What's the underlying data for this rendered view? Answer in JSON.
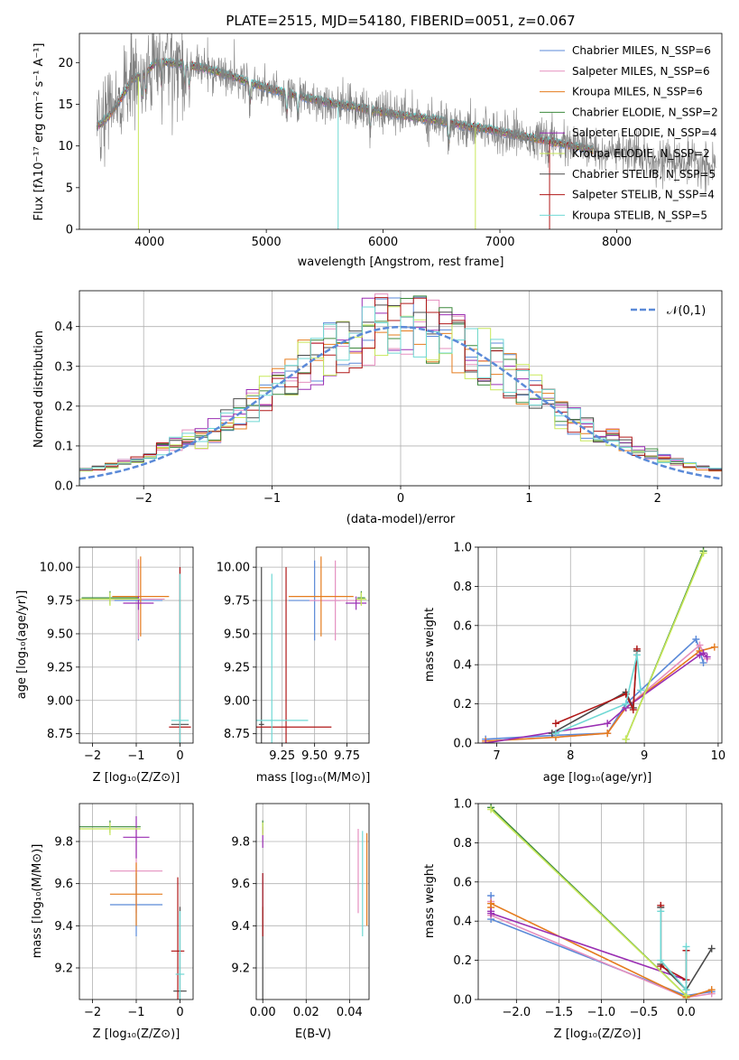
{
  "colors": {
    "chabrier_miles": "#5b8ad8",
    "salpeter_miles": "#e58fbf",
    "kroupa_miles": "#e57c1e",
    "chabrier_elodie": "#3d8a3d",
    "salpeter_elodie": "#9a2fb3",
    "kroupa_elodie": "#c8e85a",
    "chabrier_stelib": "#4a4a4a",
    "salpeter_stelib": "#b01818",
    "kroupa_stelib": "#6fd8d4",
    "normal_curve": "#5b8ad8"
  },
  "chart_data": [
    {
      "id": "spectrum",
      "type": "line",
      "title": "PLATE=2515, MJD=54180, FIBERID=0051, z=0.067",
      "xlabel": "wavelength [Angstrom, rest frame]",
      "ylabel": "Flux [fλ10⁻¹⁷ erg cm⁻² s⁻¹ A⁻¹]",
      "xlim": [
        3400,
        8900
      ],
      "ylim": [
        0,
        23.5
      ],
      "xticks": [
        "4000",
        "5000",
        "6000",
        "7000",
        "8000"
      ],
      "yticks": [
        "0",
        "5",
        "10",
        "15",
        "20"
      ],
      "legend_position": "top-right",
      "legend": [
        "Chabrier MILES, N_SSP=6",
        "Salpeter MILES, N_SSP=6",
        "Kroupa MILES, N_SSP=6",
        "Chabrier ELODIE, N_SSP=2",
        "Salpeter ELODIE, N_SSP=4",
        "Kroupa ELODIE, N_SSP=2",
        "Chabrier STELIB, N_SSP=5",
        "Salpeter STELIB, N_SSP=4",
        "Kroupa STELIB, N_SSP=5"
      ],
      "continuum": {
        "x": [
          3550,
          3650,
          3750,
          3850,
          3950,
          4050,
          4150,
          4300,
          4500,
          4700,
          4900,
          5100,
          5300,
          5500,
          5700,
          5900,
          6100,
          6300,
          6500,
          6700,
          6900,
          7100,
          7300,
          7500,
          7700,
          7900,
          8100,
          8300,
          8500,
          8700,
          8850
        ],
        "y": [
          12.3,
          13.5,
          15.5,
          18.0,
          18.5,
          20.0,
          20.0,
          19.8,
          19.2,
          18.4,
          17.4,
          16.6,
          15.9,
          15.3,
          14.8,
          14.3,
          13.8,
          13.4,
          13.0,
          12.4,
          12.0,
          11.4,
          10.9,
          10.3,
          9.8,
          9.3,
          8.9,
          8.5,
          8.1,
          7.7,
          7.4
        ]
      },
      "model_end_x": 7800,
      "data_end_x": 8850
    },
    {
      "id": "residuals",
      "type": "histogram",
      "xlabel": "(data-model)/error",
      "ylabel": "Normed distribution",
      "xlim": [
        -2.5,
        2.5
      ],
      "ylim": [
        0,
        0.49
      ],
      "xticks": [
        "−2",
        "−1",
        "0",
        "1",
        "2"
      ],
      "yticks": [
        "0.0",
        "0.1",
        "0.2",
        "0.3",
        "0.4"
      ],
      "legend_position": "top-right",
      "legend": [
        "𝒩(0,1)"
      ],
      "bins": 50,
      "grid": true
    },
    {
      "id": "age_vs_z",
      "type": "errorbar",
      "xlabel": "Z [log₁₀(Z/Z⊙)]",
      "ylabel": "age  [log₁₀(age/yr)]",
      "xlim": [
        -2.3,
        0.3
      ],
      "ylim": [
        8.68,
        10.15
      ],
      "xticks": [
        "−2",
        "−1",
        "0"
      ],
      "yticks": [
        "8.75",
        "9.00",
        "9.25",
        "9.50",
        "9.75",
        "10.00"
      ],
      "grid": true,
      "points": [
        {
          "model": "chabrier_miles",
          "x": -0.95,
          "y": 9.75,
          "xerr": 0.55,
          "yerr": 0.3
        },
        {
          "model": "salpeter_miles",
          "x": -0.95,
          "y": 9.76,
          "xerr": 0.6,
          "yerr": 0.3
        },
        {
          "model": "kroupa_miles",
          "x": -0.9,
          "y": 9.78,
          "xerr": 0.65,
          "yerr": 0.3
        },
        {
          "model": "chabrier_elodie",
          "x": -1.6,
          "y": 9.77,
          "xerr": 0.65,
          "yerr": 0.05
        },
        {
          "model": "salpeter_elodie",
          "x": -0.95,
          "y": 9.73,
          "xerr": 0.35,
          "yerr": 0.05
        },
        {
          "model": "kroupa_elodie",
          "x": -1.6,
          "y": 9.76,
          "xerr": 0.7,
          "yerr": 0.05
        },
        {
          "model": "chabrier_stelib",
          "x": 0.0,
          "y": 8.82,
          "xerr": 0.2,
          "yerr": 1.18
        },
        {
          "model": "salpeter_stelib",
          "x": 0.0,
          "y": 8.8,
          "xerr": 0.25,
          "yerr": 1.2
        },
        {
          "model": "kroupa_stelib",
          "x": 0.0,
          "y": 8.85,
          "xerr": 0.2,
          "yerr": 1.1
        }
      ]
    },
    {
      "id": "age_vs_mass",
      "type": "errorbar",
      "xlabel": "mass [log₁₀(M/M⊙)]",
      "xlim": [
        9.05,
        9.92
      ],
      "ylim": [
        8.68,
        10.15
      ],
      "xticks": [
        "9.25",
        "9.50",
        "9.75"
      ],
      "yticks": [
        "8.75",
        "9.00",
        "9.25",
        "9.50",
        "9.75",
        "10.00"
      ],
      "grid": true,
      "points": [
        {
          "model": "chabrier_miles",
          "x": 9.5,
          "y": 9.75,
          "xerr": 0.2,
          "yerr": 0.3
        },
        {
          "model": "salpeter_miles",
          "x": 9.66,
          "y": 9.75,
          "xerr": 0.2,
          "yerr": 0.3
        },
        {
          "model": "kroupa_miles",
          "x": 9.55,
          "y": 9.78,
          "xerr": 0.25,
          "yerr": 0.3
        },
        {
          "model": "chabrier_elodie",
          "x": 9.86,
          "y": 9.77,
          "xerr": 0.03,
          "yerr": 0.05
        },
        {
          "model": "salpeter_elodie",
          "x": 9.82,
          "y": 9.73,
          "xerr": 0.08,
          "yerr": 0.05
        },
        {
          "model": "kroupa_elodie",
          "x": 9.86,
          "y": 9.76,
          "xerr": 0.04,
          "yerr": 0.05
        },
        {
          "model": "chabrier_stelib",
          "x": 9.09,
          "y": 8.82,
          "xerr": 0.02,
          "yerr": 1.18
        },
        {
          "model": "salpeter_stelib",
          "x": 9.28,
          "y": 8.8,
          "xerr": 0.35,
          "yerr": 1.2
        },
        {
          "model": "kroupa_stelib",
          "x": 9.17,
          "y": 8.85,
          "xerr": 0.28,
          "yerr": 1.1
        }
      ]
    },
    {
      "id": "weight_vs_age",
      "type": "line",
      "xlabel": "age  [log₁₀(age/yr)]",
      "ylabel": "mass weight",
      "xlim": [
        6.75,
        10.05
      ],
      "ylim": [
        0,
        1.0
      ],
      "xticks": [
        "7",
        "8",
        "9",
        "10"
      ],
      "yticks": [
        "0.0",
        "0.2",
        "0.4",
        "0.6",
        "0.8",
        "1.0"
      ],
      "grid": true,
      "series": [
        {
          "model": "chabrier_miles",
          "x": [
            6.85,
            7.8,
            8.5,
            8.75,
            9.7,
            9.8
          ],
          "y": [
            0.02,
            0.04,
            0.05,
            0.2,
            0.53,
            0.41
          ]
        },
        {
          "model": "salpeter_miles",
          "x": [
            6.85,
            7.8,
            8.5,
            8.75,
            9.75,
            9.85
          ],
          "y": [
            0.01,
            0.03,
            0.05,
            0.18,
            0.5,
            0.43
          ]
        },
        {
          "model": "kroupa_miles",
          "x": [
            6.85,
            7.8,
            8.5,
            8.75,
            9.75,
            9.95
          ],
          "y": [
            0.01,
            0.03,
            0.05,
            0.18,
            0.47,
            0.49
          ]
        },
        {
          "model": "chabrier_elodie",
          "x": [
            8.75,
            9.8
          ],
          "y": [
            0.02,
            0.98
          ]
        },
        {
          "model": "salpeter_elodie",
          "x": [
            6.85,
            8.5,
            8.75,
            9.75,
            9.8,
            9.85
          ],
          "y": [
            0.0,
            0.1,
            0.18,
            0.45,
            0.46,
            0.44
          ]
        },
        {
          "model": "kroupa_elodie",
          "x": [
            8.75,
            9.8
          ],
          "y": [
            0.02,
            0.97
          ]
        },
        {
          "model": "chabrier_stelib",
          "x": [
            7.75,
            8.75,
            8.85,
            8.9
          ],
          "y": [
            0.05,
            0.26,
            0.18,
            0.47
          ]
        },
        {
          "model": "salpeter_stelib",
          "x": [
            7.8,
            8.75,
            8.85,
            8.9
          ],
          "y": [
            0.1,
            0.25,
            0.17,
            0.48
          ]
        },
        {
          "model": "kroupa_stelib",
          "x": [
            7.8,
            8.75,
            8.9,
            8.95
          ],
          "y": [
            0.05,
            0.2,
            0.45,
            0.27
          ]
        }
      ]
    },
    {
      "id": "mass_vs_z",
      "type": "errorbar",
      "xlabel": "Z [log₁₀(Z/Z⊙)]",
      "ylabel": "mass [log₁₀(M/M⊙)]",
      "xlim": [
        -2.3,
        0.3
      ],
      "ylim": [
        9.05,
        9.98
      ],
      "xticks": [
        "−2",
        "−1",
        "0"
      ],
      "yticks": [
        "9.2",
        "9.4",
        "9.6",
        "9.8"
      ],
      "grid": true,
      "points": [
        {
          "model": "chabrier_miles",
          "x": -1.0,
          "y": 9.5,
          "xerr": 0.6,
          "yerr": 0.15
        },
        {
          "model": "salpeter_miles",
          "x": -1.0,
          "y": 9.66,
          "xerr": 0.6,
          "yerr": 0.2
        },
        {
          "model": "kroupa_miles",
          "x": -1.0,
          "y": 9.55,
          "xerr": 0.6,
          "yerr": 0.15
        },
        {
          "model": "chabrier_elodie",
          "x": -1.6,
          "y": 9.87,
          "xerr": 0.7,
          "yerr": 0.03
        },
        {
          "model": "salpeter_elodie",
          "x": -1.0,
          "y": 9.82,
          "xerr": 0.3,
          "yerr": 0.1
        },
        {
          "model": "kroupa_elodie",
          "x": -1.6,
          "y": 9.86,
          "xerr": 0.7,
          "yerr": 0.03
        },
        {
          "model": "chabrier_stelib",
          "x": 0.0,
          "y": 9.09,
          "xerr": 0.15,
          "yerr": 0.4
        },
        {
          "model": "salpeter_stelib",
          "x": -0.05,
          "y": 9.28,
          "xerr": 0.15,
          "yerr": 0.35
        },
        {
          "model": "kroupa_stelib",
          "x": 0.0,
          "y": 9.17,
          "xerr": 0.1,
          "yerr": 0.3
        }
      ]
    },
    {
      "id": "mass_vs_ebv",
      "type": "errorbar",
      "xlabel": "E(B-V)",
      "xlim": [
        -0.003,
        0.049
      ],
      "ylim": [
        9.05,
        9.98
      ],
      "xticks": [
        "0.00",
        "0.02",
        "0.04"
      ],
      "yticks": [
        "9.2",
        "9.4",
        "9.6",
        "9.8"
      ],
      "grid": true,
      "points": [
        {
          "model": "chabrier_miles",
          "x": 0.0,
          "y": 9.5,
          "xerr": 0,
          "yerr": 0.15
        },
        {
          "model": "salpeter_miles",
          "x": 0.044,
          "y": 9.66,
          "xerr": 0,
          "yerr": 0.2
        },
        {
          "model": "kroupa_miles",
          "x": 0.048,
          "y": 9.62,
          "xerr": 0,
          "yerr": 0.22
        },
        {
          "model": "chabrier_elodie",
          "x": 0.0,
          "y": 9.87,
          "xerr": 0,
          "yerr": 0.03
        },
        {
          "model": "salpeter_elodie",
          "x": 0.0,
          "y": 9.82,
          "xerr": 0,
          "yerr": 0.05
        },
        {
          "model": "kroupa_elodie",
          "x": 0.0,
          "y": 9.86,
          "xerr": 0,
          "yerr": 0.03
        },
        {
          "model": "chabrier_stelib",
          "x": 0.0,
          "y": 9.09,
          "xerr": 0,
          "yerr": 0.4
        },
        {
          "model": "salpeter_stelib",
          "x": 0.0,
          "y": 9.5,
          "xerr": 0,
          "yerr": 0.15
        },
        {
          "model": "kroupa_stelib",
          "x": 0.046,
          "y": 9.6,
          "xerr": 0,
          "yerr": 0.25
        }
      ]
    },
    {
      "id": "weight_vs_z",
      "type": "line",
      "xlabel": "Z [log₁₀(Z/Z⊙)]",
      "ylabel": "mass weight",
      "xlim": [
        -2.45,
        0.42
      ],
      "ylim": [
        0,
        1.0
      ],
      "xticks": [
        "−2.0",
        "−1.5",
        "−1.0",
        "−0.5",
        "0.0"
      ],
      "yticks": [
        "0.0",
        "0.2",
        "0.4",
        "0.6",
        "0.8",
        "1.0"
      ],
      "grid": true,
      "series": [
        {
          "model": "chabrier_miles",
          "x": [
            -2.3,
            -2.3,
            0.0,
            0.3
          ],
          "y": [
            0.53,
            0.41,
            0.02,
            0.04
          ]
        },
        {
          "model": "salpeter_miles",
          "x": [
            -2.3,
            -2.3,
            0.0,
            0.3
          ],
          "y": [
            0.5,
            0.43,
            0.01,
            0.03
          ]
        },
        {
          "model": "kroupa_miles",
          "x": [
            -2.3,
            -2.3,
            0.0,
            0.3
          ],
          "y": [
            0.47,
            0.49,
            0.01,
            0.05
          ]
        },
        {
          "model": "chabrier_elodie",
          "x": [
            -2.3,
            0.0
          ],
          "y": [
            0.98,
            0.02
          ]
        },
        {
          "model": "salpeter_elodie",
          "x": [
            -2.3,
            -2.3,
            0.0
          ],
          "y": [
            0.45,
            0.44,
            0.1
          ]
        },
        {
          "model": "kroupa_elodie",
          "x": [
            -2.3,
            0.0
          ],
          "y": [
            0.97,
            0.02
          ]
        },
        {
          "model": "chabrier_stelib",
          "x": [
            -0.3,
            -0.3,
            0.0,
            0.3
          ],
          "y": [
            0.47,
            0.18,
            0.05,
            0.26
          ]
        },
        {
          "model": "salpeter_stelib",
          "x": [
            -0.3,
            -0.3,
            0.0,
            0.0
          ],
          "y": [
            0.48,
            0.17,
            0.1,
            0.25
          ]
        },
        {
          "model": "kroupa_stelib",
          "x": [
            -0.3,
            -0.3,
            0.0,
            0.0
          ],
          "y": [
            0.45,
            0.2,
            0.05,
            0.27
          ]
        }
      ]
    }
  ]
}
